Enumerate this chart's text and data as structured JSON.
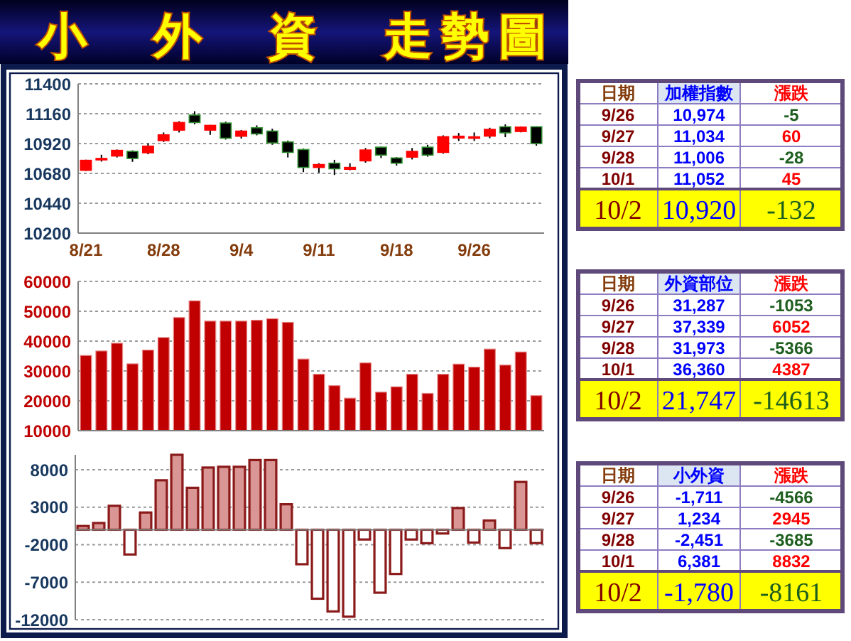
{
  "chart_data": [
    {
      "type": "candlestick",
      "title": "小　外　資　走勢圖",
      "categories": [
        "8/21",
        null,
        null,
        null,
        null,
        "8/28",
        null,
        null,
        null,
        null,
        "9/4",
        null,
        null,
        null,
        null,
        "9/11",
        null,
        null,
        null,
        null,
        "9/18",
        null,
        null,
        null,
        null,
        "9/26",
        null,
        null,
        null,
        null
      ],
      "ohlc": [
        [
          10705,
          10790,
          10700,
          10785
        ],
        [
          10795,
          10830,
          10775,
          10800
        ],
        [
          10820,
          10872,
          10808,
          10865
        ],
        [
          10857,
          10865,
          10773,
          10800
        ],
        [
          10846,
          10922,
          10834,
          10899
        ],
        [
          10944,
          11009,
          10933,
          10990
        ],
        [
          11028,
          11100,
          11009,
          11089
        ],
        [
          11149,
          11180,
          11074,
          11089
        ],
        [
          11028,
          11070,
          10990,
          11066
        ],
        [
          11085,
          11096,
          10952,
          10963
        ],
        [
          10979,
          11028,
          10960,
          11020
        ],
        [
          11047,
          11066,
          10986,
          10998
        ],
        [
          11020,
          11039,
          10910,
          10925
        ],
        [
          10933,
          10944,
          10808,
          10849
        ],
        [
          10872,
          10880,
          10690,
          10728
        ],
        [
          10728,
          10762,
          10686,
          10751
        ],
        [
          10762,
          10789,
          10667,
          10717
        ],
        [
          10713,
          10762,
          10705,
          10728
        ],
        [
          10781,
          10884,
          10766,
          10868
        ],
        [
          10891,
          10895,
          10804,
          10827
        ],
        [
          10804,
          10811,
          10743,
          10762
        ],
        [
          10811,
          10884,
          10792,
          10857
        ],
        [
          10891,
          10910,
          10815,
          10827
        ],
        [
          10849,
          10986,
          10838,
          10975
        ],
        [
          10965,
          11005,
          10941,
          10979
        ],
        [
          10965,
          11009,
          10941,
          10974
        ],
        [
          10980,
          11047,
          10963,
          11034
        ],
        [
          11055,
          11074,
          10971,
          11006
        ],
        [
          11017,
          11058,
          11010,
          11052
        ],
        [
          11055,
          11058,
          10903,
          10920
        ]
      ],
      "colors": [
        "#ff0000",
        "#ff0000",
        "#ff0000",
        "#000000",
        "#ff0000",
        "#ff0000",
        "#ff0000",
        "#000000",
        "#ff0000",
        "#000000",
        "#ff0000",
        "#000000",
        "#000000",
        "#000000",
        "#000000",
        "#ff0000",
        "#000000",
        "#ff0000",
        "#ff0000",
        "#000000",
        "#000000",
        "#ff0000",
        "#000000",
        "#ff0000",
        "#ff0000",
        "#ff0000",
        "#ff0000",
        "#000000",
        "#ff0000",
        "#000000"
      ],
      "ylim": [
        10200,
        11400
      ],
      "yticks": [
        10200,
        10440,
        10680,
        10920,
        11160,
        11400
      ],
      "grid": "y"
    },
    {
      "type": "bar",
      "categories": [
        null,
        null,
        null,
        null,
        null,
        null,
        null,
        null,
        null,
        null,
        null,
        null,
        null,
        null,
        null,
        null,
        null,
        null,
        null,
        null,
        null,
        null,
        null,
        null,
        null,
        null,
        null,
        null,
        null,
        null
      ],
      "values": [
        35200,
        36700,
        39300,
        32400,
        37000,
        41200,
        47900,
        53500,
        46700,
        46700,
        46700,
        47000,
        47500,
        46300,
        34000,
        28900,
        25100,
        20900,
        32700,
        22900,
        24700,
        28900,
        22500,
        28900,
        32300,
        31287,
        37339,
        31973,
        36360,
        21747
      ],
      "color": "#c00000",
      "ylim": [
        10000,
        60000
      ],
      "yticks": [
        10000,
        20000,
        30000,
        40000,
        50000,
        60000
      ],
      "grid": "y",
      "tick_labels": "y"
    },
    {
      "type": "bar",
      "categories": [
        null,
        null,
        null,
        null,
        null,
        null,
        null,
        null,
        null,
        null,
        null,
        null,
        null,
        null,
        null,
        null,
        null,
        null,
        null,
        null,
        null,
        null,
        null,
        null,
        null,
        null,
        null,
        null,
        null,
        null
      ],
      "values": [
        500,
        900,
        3200,
        -3300,
        2300,
        6600,
        10000,
        5600,
        8300,
        8400,
        8400,
        9300,
        9300,
        3400,
        -4600,
        -9200,
        -10900,
        -11600,
        -1300,
        -8400,
        -5900,
        -1300,
        -1800,
        -500,
        2900,
        -1711,
        1234,
        -2451,
        6381,
        -1780
      ],
      "colors": [
        "#d99694",
        "#d99694",
        "#d99694",
        "#ffffff",
        "#d99694",
        "#d99694",
        "#d99694",
        "#d99694",
        "#d99694",
        "#d99694",
        "#d99694",
        "#d99694",
        "#d99694",
        "#d99694",
        "#ffffff",
        "#ffffff",
        "#ffffff",
        "#ffffff",
        "#ffffff",
        "#ffffff",
        "#ffffff",
        "#ffffff",
        "#ffffff",
        "#ffffff",
        "#d99694",
        "#ffffff",
        "#d99694",
        "#ffffff",
        "#d99694",
        "#ffffff"
      ],
      "ylim": [
        -12000,
        10000
      ],
      "yticks": [
        -12000,
        -7000,
        -2000,
        3000,
        8000
      ],
      "grid": "y",
      "tick_labels": "y"
    },
    {
      "type": "other",
      "ylabel": "日期",
      "categories": [
        "加權指數",
        "漲跌"
      ],
      "y_categories": [
        "9/26",
        "9/27",
        "9/28",
        "10/1",
        "10/2"
      ],
      "cell_labels": [
        [
          "10,974",
          "-5"
        ],
        [
          "11,034",
          "60"
        ],
        [
          "11,006",
          "-28"
        ],
        [
          "11,052",
          "45"
        ],
        [
          "10,920",
          "-132"
        ]
      ]
    },
    {
      "type": "other",
      "ylabel": "日期",
      "categories": [
        "外資部位",
        "漲跌"
      ],
      "y_categories": [
        "9/26",
        "9/27",
        "9/28",
        "10/1",
        "10/2"
      ],
      "cell_labels": [
        [
          "31,287",
          "-1053"
        ],
        [
          "37,339",
          "6052"
        ],
        [
          "31,973",
          "-5366"
        ],
        [
          "36,360",
          "4387"
        ],
        [
          "21,747",
          "-14613"
        ]
      ]
    },
    {
      "type": "other",
      "ylabel": "日期",
      "categories": [
        "小外資",
        "漲跌"
      ],
      "y_categories": [
        "9/26",
        "9/27",
        "9/28",
        "10/1",
        "10/2"
      ],
      "cell_labels": [
        [
          "-1,711",
          "-4566"
        ],
        [
          "1,234",
          "2945"
        ],
        [
          "-2,451",
          "-3685"
        ],
        [
          "6,381",
          "8832"
        ],
        [
          "-1,780",
          "-8161"
        ]
      ]
    }
  ]
}
